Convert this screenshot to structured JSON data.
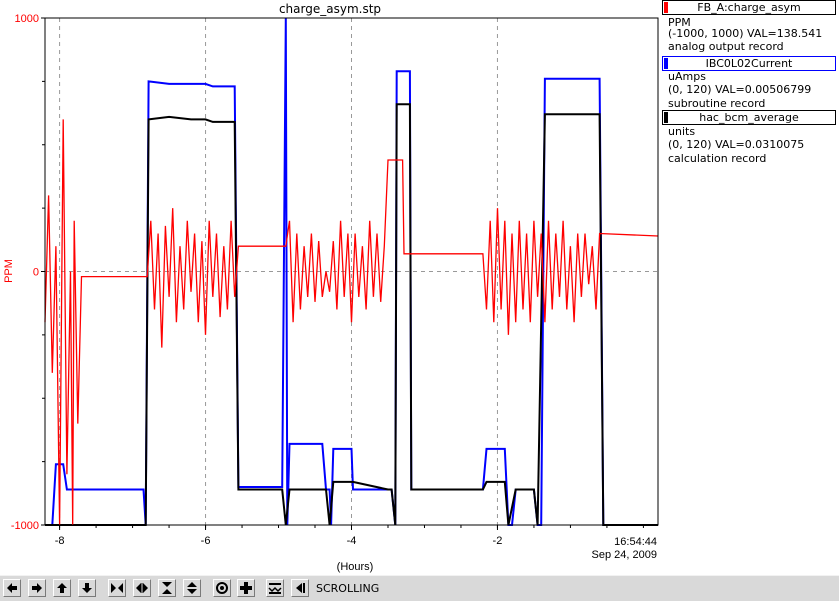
{
  "window": {
    "title": "charge_asym.stp"
  },
  "chart_data": {
    "type": "line",
    "title": "charge_asym.stp",
    "xlabel": "(Hours)",
    "ylabel": "PPM",
    "x_range": [
      -8.2,
      0.2
    ],
    "y_range": [
      -1000,
      1000
    ],
    "x_ticks": [
      "-8",
      "-6",
      "-4",
      "-2"
    ],
    "y_ticks": [
      "1000",
      "0",
      "-1000"
    ],
    "end_time": "16:54:44",
    "end_date": "Sep 24, 2009",
    "grid": true,
    "legend_placement": "right",
    "series": [
      {
        "name": "FB_A:charge_asym",
        "color": "#ff0000",
        "units": "PPM",
        "range": "(-1000, 1000) VAL=138.541",
        "record": "analog output record",
        "points": [
          [
            -8.2,
            -200
          ],
          [
            -8.15,
            300
          ],
          [
            -8.1,
            -400
          ],
          [
            -8.05,
            100
          ],
          [
            -8.0,
            -1000
          ],
          [
            -7.95,
            600
          ],
          [
            -7.9,
            -800
          ],
          [
            -7.85,
            0
          ],
          [
            -7.82,
            -1000
          ],
          [
            -7.8,
            200
          ],
          [
            -7.75,
            -600
          ],
          [
            -7.7,
            -20
          ],
          [
            -7.0,
            -20
          ],
          [
            -6.8,
            -20
          ],
          [
            -6.75,
            200
          ],
          [
            -6.7,
            -150
          ],
          [
            -6.65,
            150
          ],
          [
            -6.6,
            -300
          ],
          [
            -6.55,
            180
          ],
          [
            -6.5,
            -100
          ],
          [
            -6.45,
            250
          ],
          [
            -6.4,
            -200
          ],
          [
            -6.35,
            100
          ],
          [
            -6.3,
            -150
          ],
          [
            -6.25,
            200
          ],
          [
            -6.2,
            -80
          ],
          [
            -6.15,
            150
          ],
          [
            -6.1,
            -200
          ],
          [
            -6.05,
            120
          ],
          [
            -6.0,
            -250
          ],
          [
            -5.95,
            200
          ],
          [
            -5.9,
            -100
          ],
          [
            -5.85,
            150
          ],
          [
            -5.8,
            -180
          ],
          [
            -5.75,
            100
          ],
          [
            -5.7,
            -150
          ],
          [
            -5.65,
            200
          ],
          [
            -5.6,
            -100
          ],
          [
            -5.55,
            100
          ],
          [
            -4.9,
            100
          ],
          [
            -4.85,
            200
          ],
          [
            -4.8,
            -200
          ],
          [
            -4.75,
            150
          ],
          [
            -4.7,
            -150
          ],
          [
            -4.65,
            100
          ],
          [
            -4.6,
            -100
          ],
          [
            -4.55,
            150
          ],
          [
            -4.5,
            -120
          ],
          [
            -4.45,
            120
          ],
          [
            -4.4,
            -100
          ],
          [
            -4.35,
            0
          ],
          [
            -4.3,
            -80
          ],
          [
            -4.25,
            120
          ],
          [
            -4.2,
            -150
          ],
          [
            -4.15,
            200
          ],
          [
            -4.1,
            -100
          ],
          [
            -4.05,
            150
          ],
          [
            -4.0,
            -200
          ],
          [
            -3.95,
            150
          ],
          [
            -3.9,
            -100
          ],
          [
            -3.85,
            100
          ],
          [
            -3.8,
            -150
          ],
          [
            -3.75,
            200
          ],
          [
            -3.7,
            -100
          ],
          [
            -3.65,
            150
          ],
          [
            -3.6,
            -120
          ],
          [
            -3.55,
            100
          ],
          [
            -3.5,
            440
          ],
          [
            -3.3,
            440
          ],
          [
            -3.28,
            70
          ],
          [
            -2.2,
            70
          ],
          [
            -2.15,
            -150
          ],
          [
            -2.1,
            200
          ],
          [
            -2.05,
            -200
          ],
          [
            -2.0,
            250
          ],
          [
            -1.95,
            -150
          ],
          [
            -1.9,
            200
          ],
          [
            -1.85,
            -250
          ],
          [
            -1.8,
            150
          ],
          [
            -1.75,
            -200
          ],
          [
            -1.7,
            200
          ],
          [
            -1.65,
            -150
          ],
          [
            -1.6,
            150
          ],
          [
            -1.55,
            -200
          ],
          [
            -1.5,
            200
          ],
          [
            -1.45,
            -100
          ],
          [
            -1.4,
            150
          ],
          [
            -1.35,
            -200
          ],
          [
            -1.3,
            200
          ],
          [
            -1.25,
            -150
          ],
          [
            -1.2,
            150
          ],
          [
            -1.15,
            -100
          ],
          [
            -1.1,
            200
          ],
          [
            -1.05,
            -150
          ],
          [
            -1.0,
            100
          ],
          [
            -0.95,
            -200
          ],
          [
            -0.9,
            150
          ],
          [
            -0.85,
            -100
          ],
          [
            -0.8,
            150
          ],
          [
            -0.75,
            -50
          ],
          [
            -0.7,
            100
          ],
          [
            -0.65,
            -150
          ],
          [
            -0.6,
            150
          ],
          [
            0.2,
            140
          ]
        ]
      },
      {
        "name": "IBC0L02Current",
        "color": "#0000ff",
        "units": "uAmps",
        "range": "(0, 120) VAL=0.00506799",
        "record": "subroutine record",
        "points": [
          [
            -8.2,
            -1000
          ],
          [
            -8.1,
            -1000
          ],
          [
            -8.05,
            -760
          ],
          [
            -7.95,
            -760
          ],
          [
            -7.9,
            -860
          ],
          [
            -7.2,
            -860
          ],
          [
            -7.15,
            -860
          ],
          [
            -7.0,
            -860
          ],
          [
            -6.85,
            -860
          ],
          [
            -6.82,
            -1000
          ],
          [
            -6.78,
            750
          ],
          [
            -6.5,
            740
          ],
          [
            -6.2,
            740
          ],
          [
            -6.0,
            740
          ],
          [
            -5.9,
            730
          ],
          [
            -5.6,
            730
          ],
          [
            -5.55,
            -850
          ],
          [
            -5.0,
            -850
          ],
          [
            -4.95,
            -850
          ],
          [
            -4.9,
            1000
          ],
          [
            -4.88,
            -1000
          ],
          [
            -4.85,
            -680
          ],
          [
            -4.4,
            -680
          ],
          [
            -4.35,
            -860
          ],
          [
            -4.3,
            -860
          ],
          [
            -4.28,
            -1000
          ],
          [
            -4.25,
            -700
          ],
          [
            -4.0,
            -700
          ],
          [
            -3.98,
            -860
          ],
          [
            -3.5,
            -860
          ],
          [
            -3.45,
            -860
          ],
          [
            -3.4,
            -1000
          ],
          [
            -3.38,
            790
          ],
          [
            -3.2,
            790
          ],
          [
            -3.18,
            -860
          ],
          [
            -2.6,
            -860
          ],
          [
            -2.4,
            -860
          ],
          [
            -2.2,
            -860
          ],
          [
            -2.15,
            -700
          ],
          [
            -1.9,
            -700
          ],
          [
            -1.85,
            -1000
          ],
          [
            -1.8,
            -1000
          ],
          [
            -1.75,
            -860
          ],
          [
            -1.5,
            -860
          ],
          [
            -1.45,
            -1000
          ],
          [
            -1.4,
            -1000
          ],
          [
            -1.35,
            760
          ],
          [
            -0.6,
            760
          ],
          [
            -0.55,
            -1000
          ],
          [
            -0.5,
            -1000
          ]
        ]
      },
      {
        "name": "hac_bcm_average",
        "color": "#000000",
        "units": "units",
        "range": "(0, 120) VAL=0.0310075",
        "record": "calculation record",
        "points": [
          [
            -8.2,
            -1000
          ],
          [
            -7.1,
            -1000
          ],
          [
            -7.05,
            -1000
          ],
          [
            -6.85,
            -1000
          ],
          [
            -6.82,
            -1000
          ],
          [
            -6.78,
            600
          ],
          [
            -6.5,
            610
          ],
          [
            -6.2,
            600
          ],
          [
            -6.0,
            600
          ],
          [
            -5.9,
            590
          ],
          [
            -5.6,
            590
          ],
          [
            -5.55,
            -860
          ],
          [
            -5.0,
            -860
          ],
          [
            -4.95,
            -860
          ],
          [
            -4.9,
            -1000
          ],
          [
            -4.85,
            -860
          ],
          [
            -4.4,
            -860
          ],
          [
            -4.35,
            -860
          ],
          [
            -4.3,
            -1000
          ],
          [
            -4.25,
            -830
          ],
          [
            -3.98,
            -830
          ],
          [
            -3.5,
            -860
          ],
          [
            -3.45,
            -860
          ],
          [
            -3.4,
            -1000
          ],
          [
            -3.38,
            660
          ],
          [
            -3.2,
            660
          ],
          [
            -3.18,
            -860
          ],
          [
            -2.6,
            -860
          ],
          [
            -2.2,
            -860
          ],
          [
            -2.15,
            -830
          ],
          [
            -1.9,
            -830
          ],
          [
            -1.85,
            -1000
          ],
          [
            -1.75,
            -860
          ],
          [
            -1.5,
            -860
          ],
          [
            -1.45,
            -1000
          ],
          [
            -1.35,
            620
          ],
          [
            -0.6,
            620
          ],
          [
            -0.55,
            -1000
          ],
          [
            0.2,
            -1000
          ]
        ]
      }
    ]
  },
  "toolbar": {
    "status": "SCROLLING",
    "buttons": [
      "pan-left-icon",
      "pan-right-icon",
      "pan-up-icon",
      "pan-down-icon",
      "zoom-in-x-icon",
      "zoom-out-x-icon",
      "zoom-in-y-icon",
      "zoom-out-y-icon",
      "autoscale-icon",
      "add-trace-icon",
      "reset-icon",
      "scroll-mode-icon"
    ]
  }
}
